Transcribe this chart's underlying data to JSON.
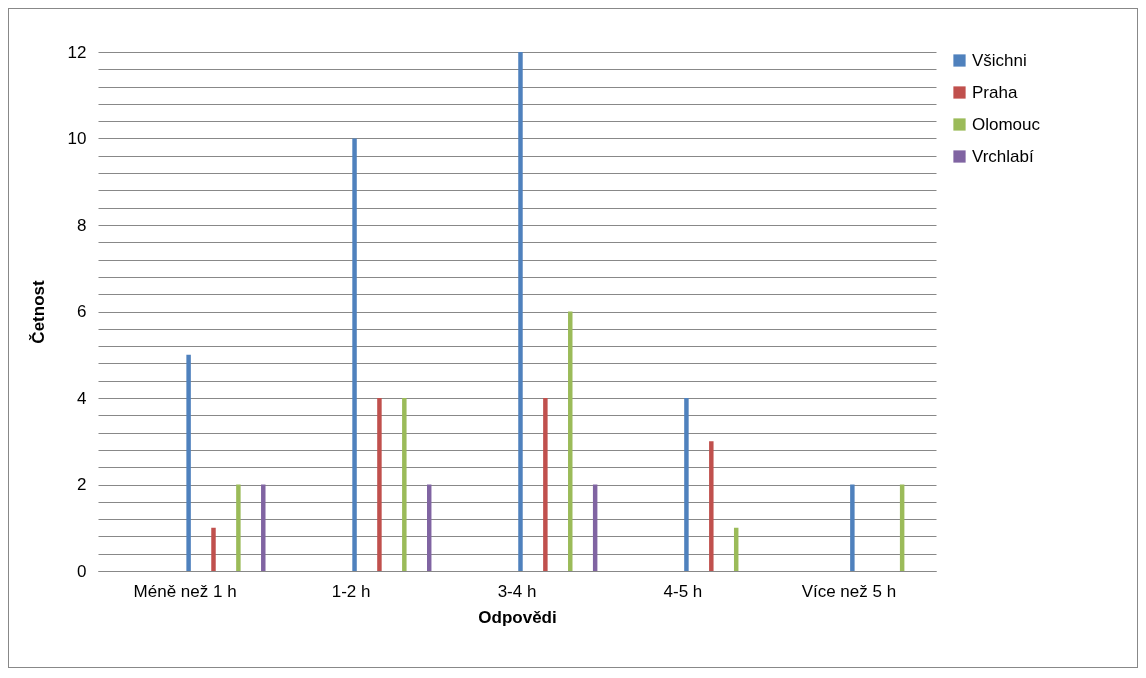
{
  "chart_data": {
    "type": "bar",
    "xlabel": "Odpovědi",
    "ylabel": "Četnost",
    "categories": [
      "Méně než 1 h",
      "1-2 h",
      "3-4 h",
      "4-5 h",
      "Více než 5 h"
    ],
    "series": [
      {
        "name": "Všichni",
        "color": "#4f81bd",
        "values": [
          5,
          10,
          12,
          4,
          2
        ]
      },
      {
        "name": "Praha",
        "color": "#c0504d",
        "values": [
          1,
          4,
          4,
          3,
          0
        ]
      },
      {
        "name": "Olomouc",
        "color": "#9bbb59",
        "values": [
          2,
          4,
          6,
          1,
          2
        ]
      },
      {
        "name": "Vrchlabí",
        "color": "#8064a2",
        "values": [
          2,
          2,
          2,
          0,
          0
        ]
      }
    ],
    "ylim": [
      0,
      12
    ],
    "yticks": [
      0,
      {
        "value": 0.4,
        "label": null
      },
      {
        "value": 0.8,
        "label": null
      },
      {
        "value": 1.2,
        "label": null
      },
      {
        "value": 1.6,
        "label": null
      },
      2,
      {
        "value": 2.4,
        "label": null
      },
      {
        "value": 2.8,
        "label": null
      },
      {
        "value": 3.2,
        "label": null
      },
      {
        "value": 3.6,
        "label": null
      },
      4,
      {
        "value": 4.4,
        "label": null
      },
      {
        "value": 4.8,
        "label": null
      },
      {
        "value": 5.2,
        "label": null
      },
      {
        "value": 5.6,
        "label": null
      },
      6,
      {
        "value": 6.4,
        "label": null
      },
      {
        "value": 6.8,
        "label": null
      },
      {
        "value": 7.2,
        "label": null
      },
      {
        "value": 7.6,
        "label": null
      },
      8,
      {
        "value": 8.4,
        "label": null
      },
      {
        "value": 8.8,
        "label": null
      },
      {
        "value": 9.2,
        "label": null
      },
      {
        "value": 9.6,
        "label": null
      },
      10,
      {
        "value": 10.4,
        "label": null
      },
      {
        "value": 10.8,
        "label": null
      },
      {
        "value": 11.2,
        "label": null
      },
      {
        "value": 11.6,
        "label": null
      },
      12
    ],
    "grid": "y",
    "legend": "right"
  }
}
